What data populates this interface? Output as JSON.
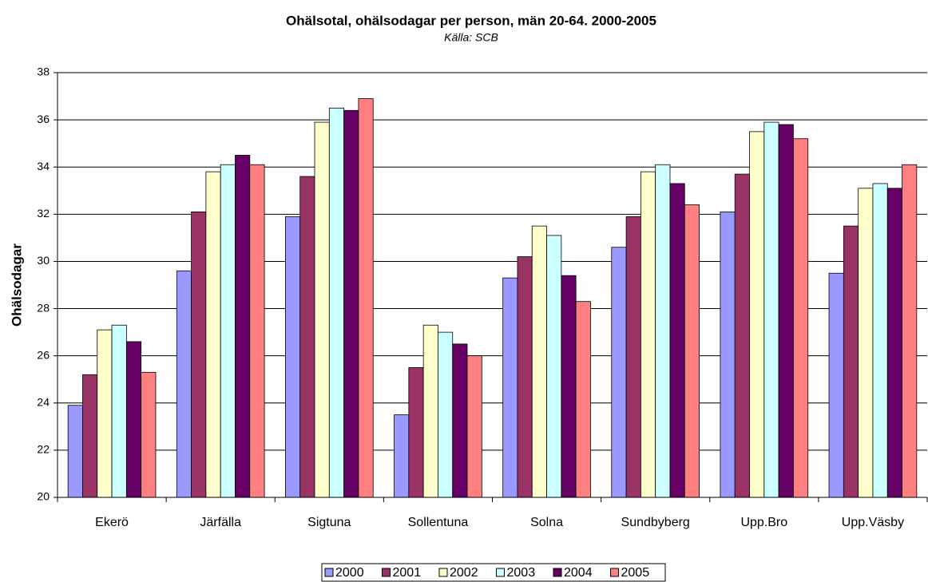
{
  "chart_data": {
    "type": "bar",
    "title": "Ohälsotal, ohälsodagar per person, män 20-64. 2000-2005",
    "subtitle": "Källa: SCB",
    "y_label": "Ohälsodagar",
    "categories": [
      "Ekerö",
      "Järfälla",
      "Sigtuna",
      "Sollentuna",
      "Solna",
      "Sundbyberg",
      "Upp.Bro",
      "Upp.Väsby"
    ],
    "series": [
      {
        "name": "2000",
        "color": "#9999ff",
        "values": [
          23.9,
          29.6,
          31.9,
          23.5,
          29.3,
          30.6,
          32.1,
          29.5
        ]
      },
      {
        "name": "2001",
        "color": "#993366",
        "values": [
          25.2,
          32.1,
          33.6,
          25.5,
          30.2,
          31.9,
          33.7,
          31.5
        ]
      },
      {
        "name": "2002",
        "color": "#ffffcc",
        "values": [
          27.1,
          33.8,
          35.9,
          27.3,
          31.5,
          33.8,
          35.5,
          33.1
        ]
      },
      {
        "name": "2003",
        "color": "#ccffff",
        "values": [
          27.3,
          34.1,
          36.5,
          27.0,
          31.1,
          34.1,
          35.9,
          33.3
        ]
      },
      {
        "name": "2004",
        "color": "#660066",
        "values": [
          26.6,
          34.5,
          36.4,
          26.5,
          29.4,
          33.3,
          35.8,
          33.1
        ]
      },
      {
        "name": "2005",
        "color": "#ff8080",
        "values": [
          25.3,
          34.1,
          36.9,
          26.0,
          28.3,
          32.4,
          35.2,
          34.1
        ]
      }
    ],
    "ylim": [
      20,
      38
    ],
    "yticks": [
      20,
      22,
      24,
      26,
      28,
      30,
      32,
      34,
      36,
      38
    ],
    "grid": true,
    "legend": "bottom"
  }
}
